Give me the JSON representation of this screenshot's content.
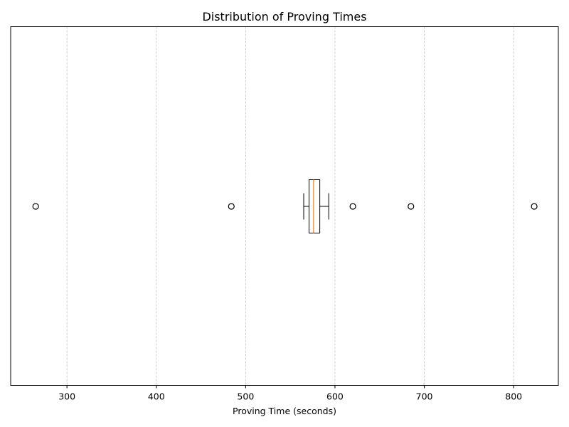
{
  "chart_data": {
    "type": "boxplot",
    "orientation": "horizontal",
    "title": "Distribution of Proving Times",
    "xlabel": "Proving Time (seconds)",
    "ylabel": "",
    "xlim": [
      237,
      850
    ],
    "xticks": [
      300,
      400,
      500,
      600,
      700,
      800
    ],
    "grid": "x-axis dashed",
    "box": {
      "whisker_low": 565,
      "q1": 571,
      "median": 576,
      "q3": 583,
      "whisker_high": 593
    },
    "outliers": [
      265,
      484,
      620,
      685,
      823
    ],
    "colors": {
      "box": "#000000",
      "median": "#ff7f0e",
      "grid": "#b0b0b0",
      "outlier_edge": "#000000"
    }
  }
}
